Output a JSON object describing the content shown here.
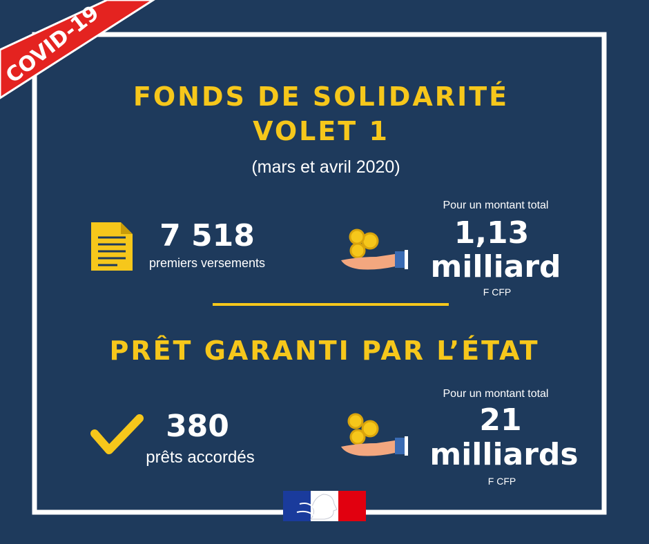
{
  "banner": "COVID-19",
  "title": {
    "line1": "FONDS DE SOLIDARITÉ",
    "line2": "VOLET 1",
    "period": "(mars et avril 2020)"
  },
  "fonds": {
    "count": "7 518",
    "count_label": "premiers versements",
    "amount_intro": "Pour un montant total",
    "amount": "1,13",
    "amount_unit": "milliard",
    "currency": "F CFP"
  },
  "pge": {
    "title": "PRÊT GARANTI PAR L’ÉTAT",
    "count": "380",
    "count_label": "prêts accordés",
    "amount_intro": "Pour un montant total",
    "amount": "21",
    "amount_unit": "milliards",
    "currency": "F CFP"
  }
}
